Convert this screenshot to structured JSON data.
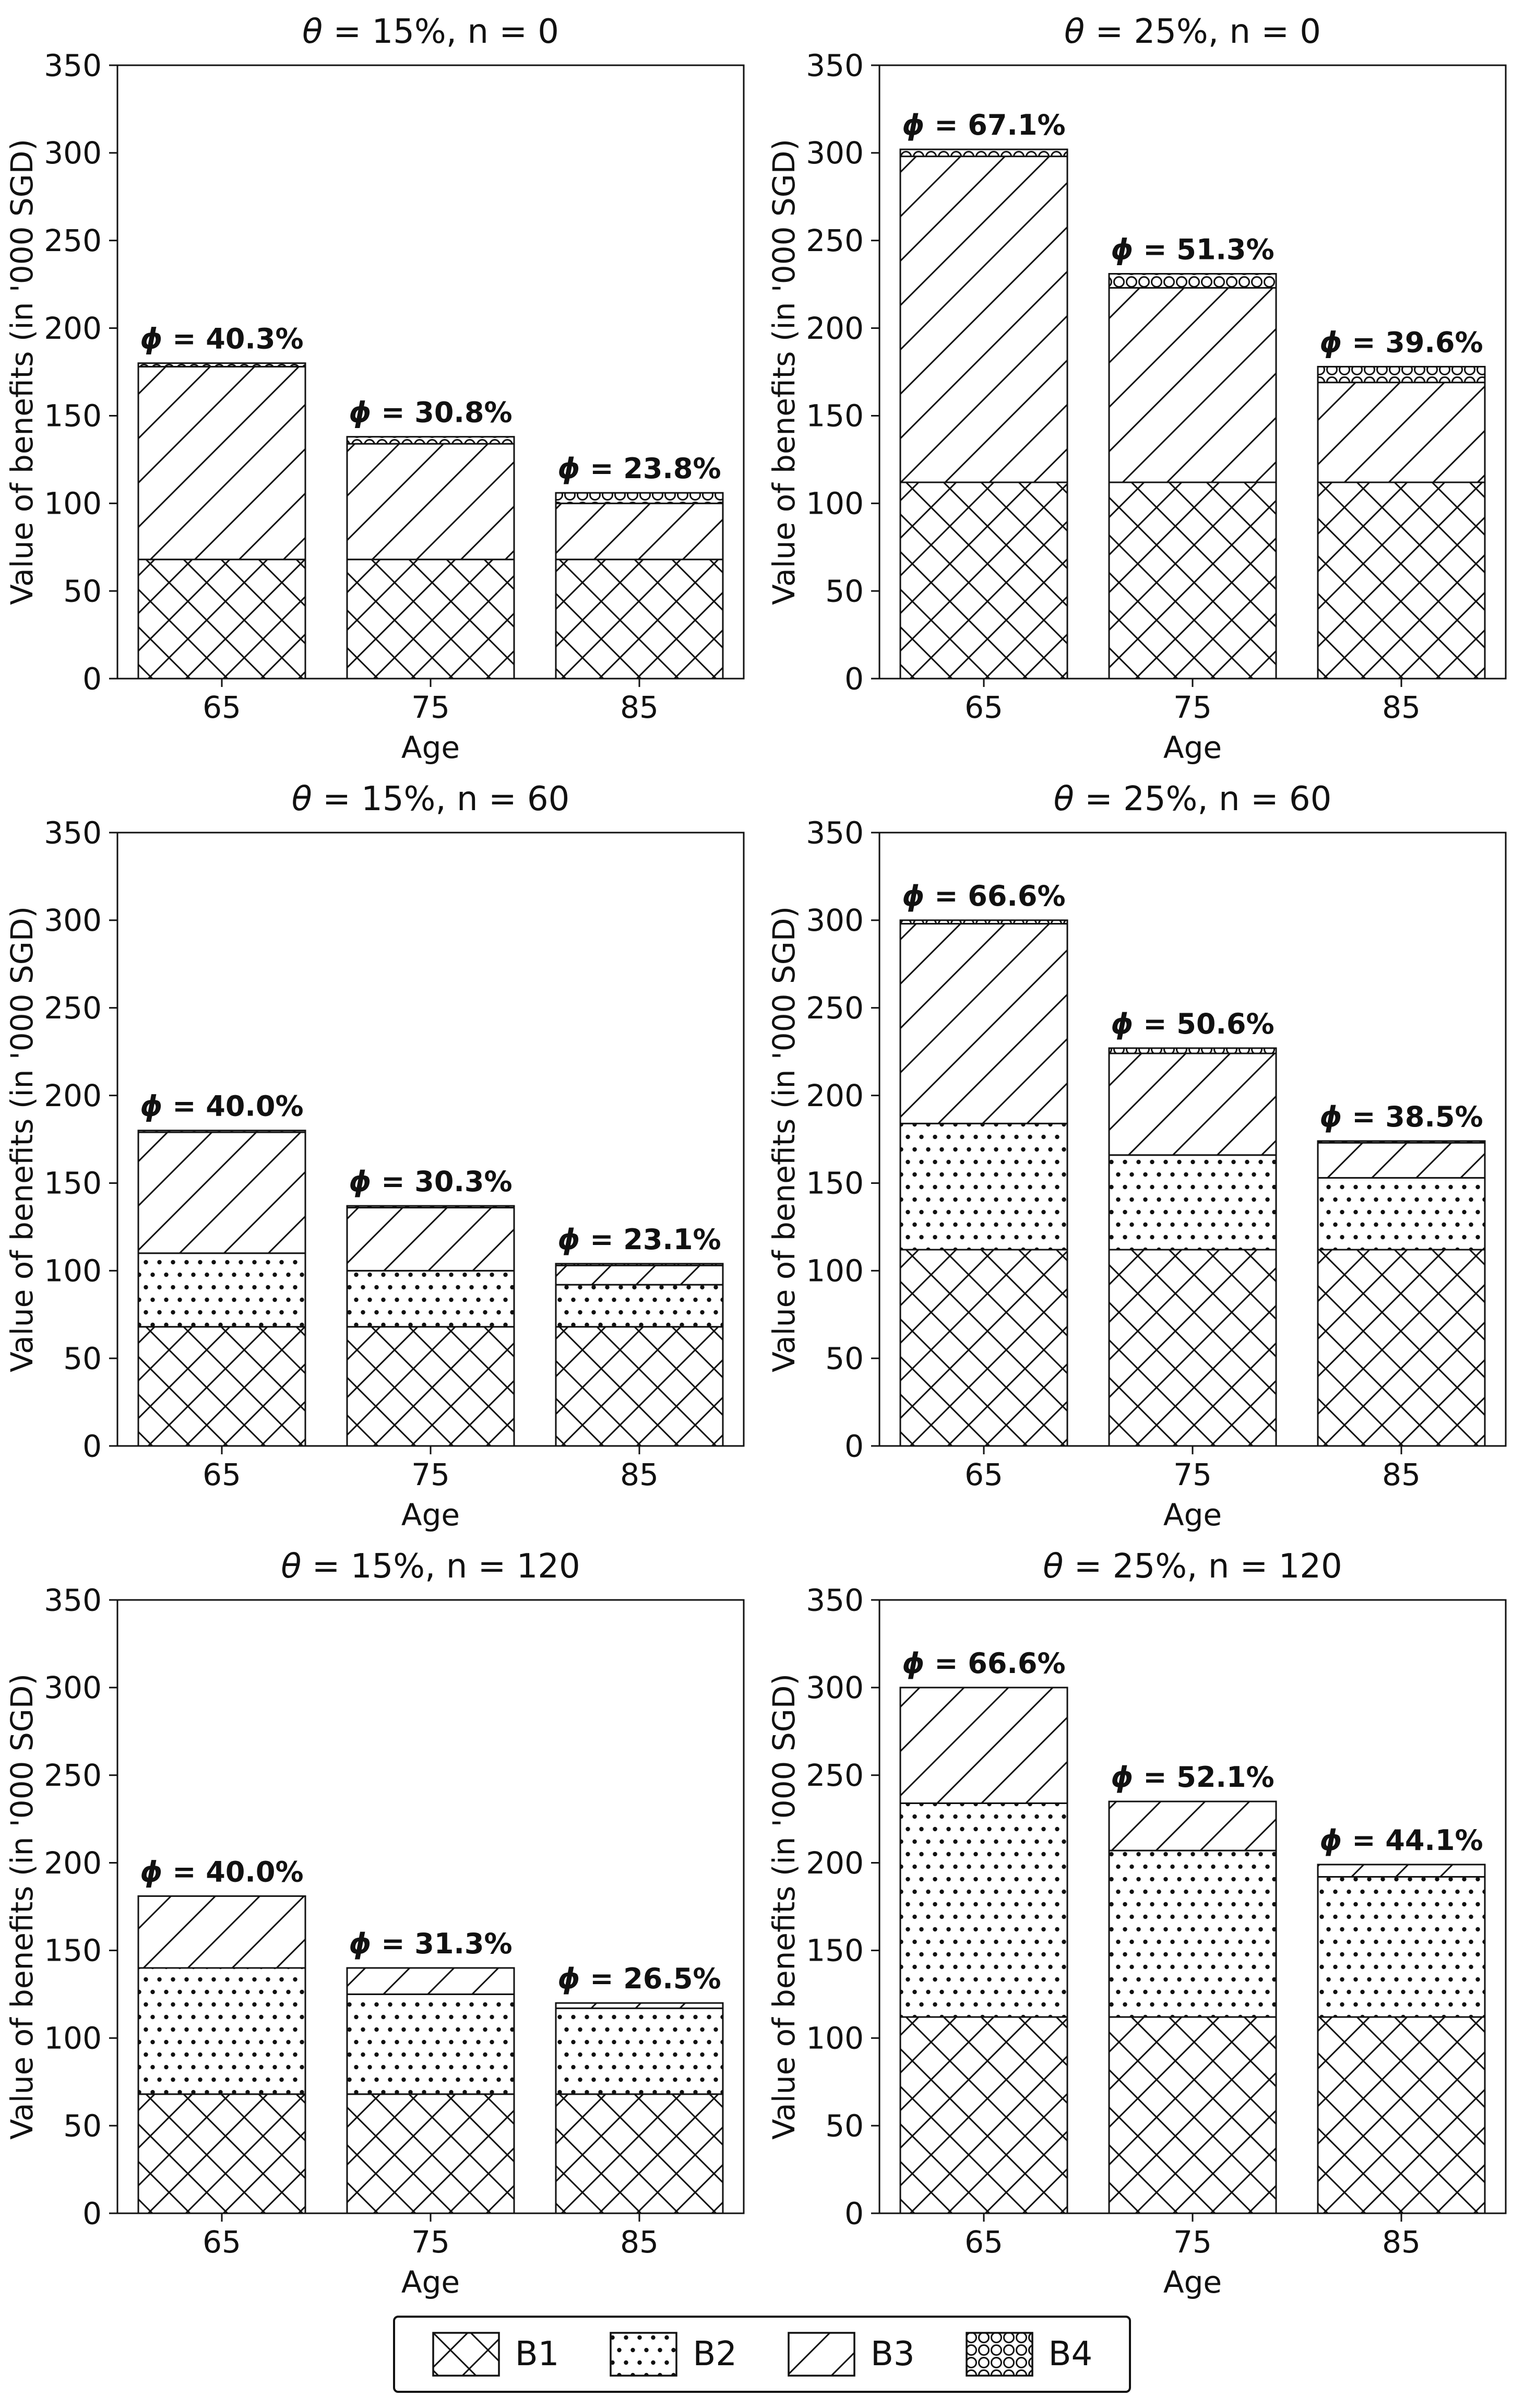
{
  "chart_data": {
    "type": "bar",
    "stacked": true,
    "categories": [
      65,
      75,
      85
    ],
    "xlabel": "Age",
    "ylabel": "Value of benefits (in '000 SGD)",
    "ylim": [
      0,
      350
    ],
    "yticks": [
      0,
      50,
      100,
      150,
      200,
      250,
      300,
      350
    ],
    "grid": false,
    "legend": [
      "B1",
      "B2",
      "B3",
      "B4"
    ],
    "legend_position": "bottom-center",
    "hatches": {
      "B1": "xx-crosshatch",
      "B2": "dots",
      "B3": "diagonal",
      "B4": "circles"
    },
    "colors": {
      "bar_fill": "#ffffff",
      "stroke": "#111111",
      "background": "#ffffff"
    },
    "phi_symbol": "ϕ",
    "subplots": [
      {
        "title": "θ = 15%, n = 0",
        "bars": [
          {
            "age": "65",
            "phi": "40.3%",
            "segments": {
              "B1": 68,
              "B2": 0,
              "B3": 110,
              "B4": 2
            },
            "total": 180
          },
          {
            "age": "75",
            "phi": "30.8%",
            "segments": {
              "B1": 68,
              "B2": 0,
              "B3": 66,
              "B4": 4
            },
            "total": 138
          },
          {
            "age": "85",
            "phi": "23.8%",
            "segments": {
              "B1": 68,
              "B2": 0,
              "B3": 32,
              "B4": 6
            },
            "total": 106
          }
        ]
      },
      {
        "title": "θ = 25%, n = 0",
        "bars": [
          {
            "age": "65",
            "phi": "67.1%",
            "segments": {
              "B1": 112,
              "B2": 0,
              "B3": 186,
              "B4": 4
            },
            "total": 302
          },
          {
            "age": "75",
            "phi": "51.3%",
            "segments": {
              "B1": 112,
              "B2": 0,
              "B3": 111,
              "B4": 8
            },
            "total": 231
          },
          {
            "age": "85",
            "phi": "39.6%",
            "segments": {
              "B1": 112,
              "B2": 0,
              "B3": 57,
              "B4": 9
            },
            "total": 178
          }
        ]
      },
      {
        "title": "θ = 15%, n = 60",
        "bars": [
          {
            "age": "65",
            "phi": "40.0%",
            "segments": {
              "B1": 68,
              "B2": 42,
              "B3": 69,
              "B4": 1
            },
            "total": 180
          },
          {
            "age": "75",
            "phi": "30.3%",
            "segments": {
              "B1": 68,
              "B2": 32,
              "B3": 36,
              "B4": 1
            },
            "total": 137
          },
          {
            "age": "85",
            "phi": "23.1%",
            "segments": {
              "B1": 68,
              "B2": 24,
              "B3": 11,
              "B4": 1
            },
            "total": 104
          }
        ]
      },
      {
        "title": "θ = 25%, n = 60",
        "bars": [
          {
            "age": "65",
            "phi": "66.6%",
            "segments": {
              "B1": 112,
              "B2": 72,
              "B3": 114,
              "B4": 2
            },
            "total": 300
          },
          {
            "age": "75",
            "phi": "50.6%",
            "segments": {
              "B1": 112,
              "B2": 54,
              "B3": 58,
              "B4": 3
            },
            "total": 227
          },
          {
            "age": "85",
            "phi": "38.5%",
            "segments": {
              "B1": 112,
              "B2": 41,
              "B3": 20,
              "B4": 1
            },
            "total": 174
          }
        ]
      },
      {
        "title": "θ = 15%, n = 120",
        "bars": [
          {
            "age": "65",
            "phi": "40.0%",
            "segments": {
              "B1": 68,
              "B2": 72,
              "B3": 41,
              "B4": 0
            },
            "total": 181
          },
          {
            "age": "75",
            "phi": "31.3%",
            "segments": {
              "B1": 68,
              "B2": 57,
              "B3": 15,
              "B4": 0
            },
            "total": 140
          },
          {
            "age": "85",
            "phi": "26.5%",
            "segments": {
              "B1": 68,
              "B2": 49,
              "B3": 3,
              "B4": 0
            },
            "total": 120
          }
        ]
      },
      {
        "title": "θ = 25%, n = 120",
        "bars": [
          {
            "age": "65",
            "phi": "66.6%",
            "segments": {
              "B1": 112,
              "B2": 122,
              "B3": 66,
              "B4": 0
            },
            "total": 300
          },
          {
            "age": "75",
            "phi": "52.1%",
            "segments": {
              "B1": 112,
              "B2": 95,
              "B3": 28,
              "B4": 0
            },
            "total": 235
          },
          {
            "age": "85",
            "phi": "44.1%",
            "segments": {
              "B1": 112,
              "B2": 80,
              "B3": 7,
              "B4": 0
            },
            "total": 199
          }
        ]
      }
    ]
  }
}
